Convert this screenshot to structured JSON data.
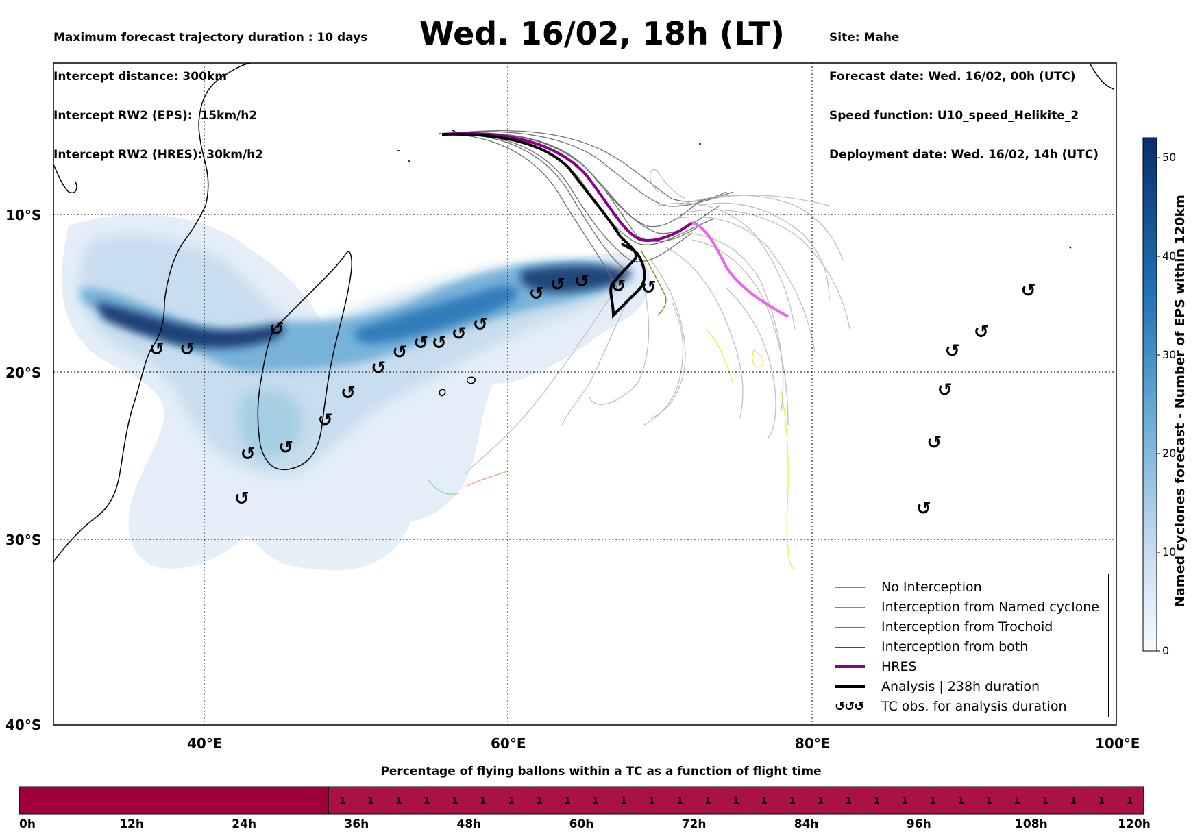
{
  "header": {
    "left_lines": [
      "Maximum forecast trajectory duration : 10 days",
      "Intercept distance: 300km",
      "Intercept RW2 (EPS):  15km/h2",
      "Intercept RW2 (HRES): 30km/h2"
    ],
    "title": "Wed. 16/02, 18h (LT)",
    "right_lines": [
      "Site: Mahe",
      "Forecast date: Wed. 16/02, 00h (UTC)",
      "Speed function: U10_speed_Helikite_2",
      "Deployment date: Wed. 16/02, 14h (UTC)"
    ]
  },
  "map": {
    "lat_labels": [
      "10°S",
      "20°S",
      "30°S",
      "40°S"
    ],
    "lon_labels": [
      "40°E",
      "60°E",
      "80°E",
      "100°E"
    ],
    "lon_range": [
      30,
      100
    ],
    "lat_range": [
      -40,
      1
    ]
  },
  "legend": [
    {
      "label": "No Interception",
      "color": "#808080"
    },
    {
      "label": "Interception from Named cyclone",
      "color": "#ff5a1f"
    },
    {
      "label": "Interception from Trochoid",
      "color": "#808000"
    },
    {
      "label": "Interception from both",
      "color": "#008000"
    },
    {
      "label": "HRES",
      "color": "#8b008b"
    },
    {
      "label": "Analysis | 238h duration",
      "color": "#000000"
    },
    {
      "label": "TC obs. for analysis duration",
      "color": "#000000",
      "symbol": "ℊℊℊ"
    }
  ],
  "tc_symbol": "↺",
  "colorbar": {
    "title": "Named cyclones forecast - Number of EPS within 120km",
    "ticks": [
      "0",
      "10",
      "20",
      "30",
      "40",
      "50"
    ],
    "range": [
      0,
      52
    ]
  },
  "timeline": {
    "title": "Percentage of flying ballons within a TC as a function of flight time",
    "labels": [
      "0h",
      "12h",
      "24h",
      "36h",
      "48h",
      "60h",
      "72h",
      "84h",
      "96h",
      "108h",
      "120h"
    ],
    "cell_value": "1",
    "filled_start_hour": 33,
    "color_empty": "#a0003c",
    "color_filled": "#aa1145"
  },
  "tc_observations": [
    [
      36.8,
      -18.0
    ],
    [
      38.8,
      -18.0
    ],
    [
      44.7,
      -16.7
    ],
    [
      49.4,
      -20.8
    ],
    [
      51.4,
      -19.2
    ],
    [
      52.8,
      -18.2
    ],
    [
      54.2,
      -17.6
    ],
    [
      55.4,
      -17.6
    ],
    [
      56.7,
      -17.0
    ],
    [
      58.1,
      -16.4
    ],
    [
      61.8,
      -14.4
    ],
    [
      63.2,
      -13.8
    ],
    [
      64.8,
      -13.6
    ],
    [
      67.2,
      -13.9
    ],
    [
      69.2,
      -14.0
    ],
    [
      47.9,
      -22.5
    ],
    [
      45.3,
      -24.2
    ],
    [
      42.8,
      -24.6
    ],
    [
      42.4,
      -27.3
    ],
    [
      94.2,
      -14.2
    ],
    [
      91.1,
      -16.9
    ],
    [
      89.2,
      -18.1
    ],
    [
      88.7,
      -20.6
    ],
    [
      88.0,
      -23.9
    ],
    [
      87.3,
      -27.9
    ]
  ]
}
